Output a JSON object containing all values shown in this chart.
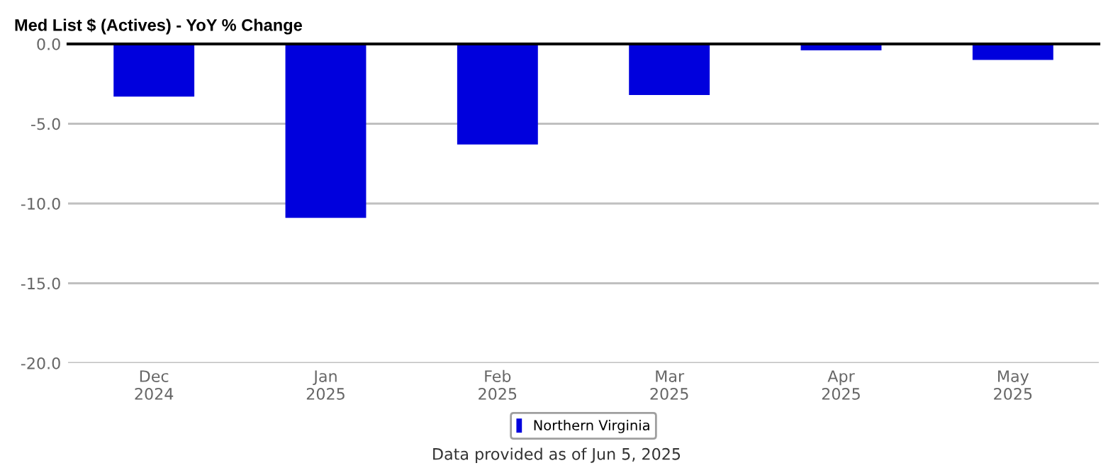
{
  "chart_data": {
    "type": "bar",
    "title": "Med List $ (Actives) - YoY % Change",
    "categories": [
      "Dec\n2024",
      "Jan\n2025",
      "Feb\n2025",
      "Mar\n2025",
      "Apr\n2025",
      "May\n2025"
    ],
    "series": [
      {
        "name": "Northern Virginia",
        "color": "#0000dd",
        "values": [
          -3.3,
          -10.9,
          -6.3,
          -3.2,
          -0.4,
          -1.0
        ]
      }
    ],
    "ylim": [
      -20,
      0
    ],
    "yticks": [
      {
        "value": 0,
        "label": "0.0"
      },
      {
        "value": -5,
        "label": "-5.0"
      },
      {
        "value": -10,
        "label": "-10.0"
      },
      {
        "value": -15,
        "label": "-15.0"
      },
      {
        "value": -20,
        "label": "-20.0"
      }
    ],
    "grid": "y",
    "legend": "bottom",
    "annotations": [
      "Data provided as of Jun 5, 2025"
    ]
  }
}
